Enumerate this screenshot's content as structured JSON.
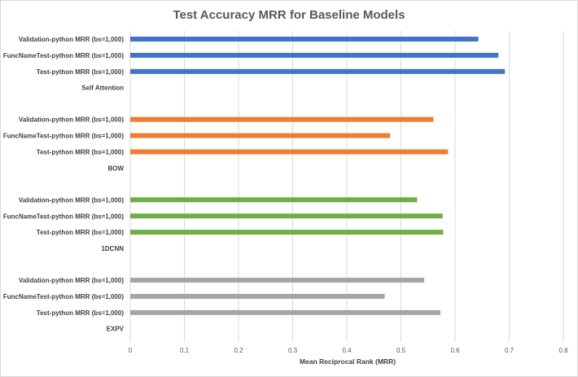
{
  "chart_data": {
    "type": "bar",
    "orientation": "horizontal",
    "title": "Test Accuracy MRR for Baseline Models",
    "xlabel": "Mean Reciprocal  Rank (MRR)",
    "ylabel": "",
    "xlim": [
      0,
      0.8
    ],
    "xticks": [
      "0",
      "0.1",
      "0.2",
      "0.3",
      "0.4",
      "0.5",
      "0.6",
      "0.7",
      "0.8"
    ],
    "grid": true,
    "groups": [
      {
        "name": "Self Attention",
        "color": "#4472c4",
        "bars": [
          {
            "label": "Validation-python MRR (bs=1,000)",
            "value": 0.643
          },
          {
            "label": "FuncNameTest-python MRR (bs=1,000)",
            "value": 0.68
          },
          {
            "label": "Test-python MRR (bs=1,000)",
            "value": 0.692
          }
        ]
      },
      {
        "name": "BOW",
        "color": "#ed7d31",
        "bars": [
          {
            "label": "Validation-python MRR (bs=1,000)",
            "value": 0.56
          },
          {
            "label": "FuncNameTest-python MRR (bs=1,000)",
            "value": 0.48
          },
          {
            "label": "Test-python MRR (bs=1,000)",
            "value": 0.587
          }
        ]
      },
      {
        "name": "1DCNN",
        "color": "#70ad47",
        "bars": [
          {
            "label": "Validation-python MRR (bs=1,000)",
            "value": 0.53
          },
          {
            "label": "FuncNameTest-python MRR (bs=1,000)",
            "value": 0.577
          },
          {
            "label": "Test-python MRR (bs=1,000)",
            "value": 0.578
          }
        ]
      },
      {
        "name": "EXPV",
        "color": "#a5a5a5",
        "bars": [
          {
            "label": "Validation-python MRR (bs=1,000)",
            "value": 0.543
          },
          {
            "label": "FuncNameTest-python MRR (bs=1,000)",
            "value": 0.47
          },
          {
            "label": "Test-python MRR (bs=1,000)",
            "value": 0.573
          }
        ]
      }
    ]
  }
}
